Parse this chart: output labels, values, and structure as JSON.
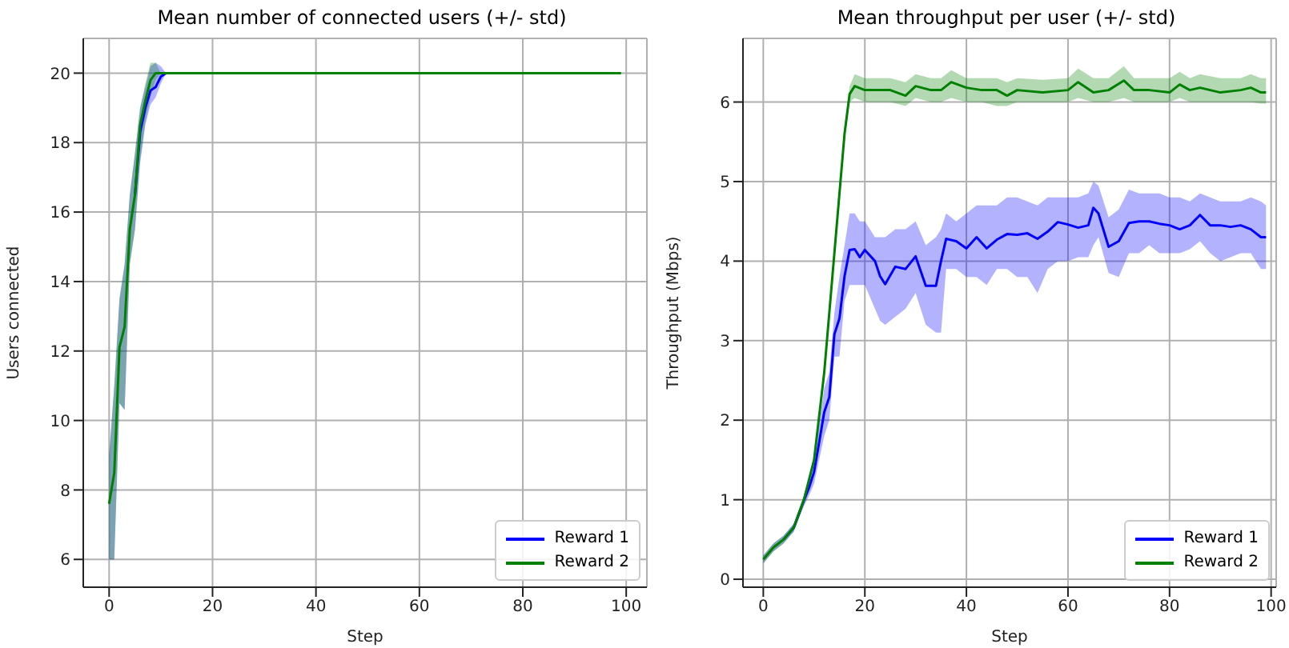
{
  "chart_data": [
    {
      "type": "line",
      "title": "Mean number of connected users (+/- std)",
      "xlabel": "Step",
      "ylabel": "Users connected",
      "xlim": [
        -5,
        104
      ],
      "ylim": [
        5.2,
        21
      ],
      "xticks": [
        0,
        20,
        40,
        60,
        80,
        100
      ],
      "yticks": [
        6,
        8,
        10,
        12,
        14,
        16,
        18,
        20
      ],
      "grid": true,
      "legend": "bottom right",
      "series": [
        {
          "name": "Reward 1",
          "color": "#0000ff",
          "x": [
            0,
            1,
            2,
            3,
            4,
            5,
            6,
            7,
            8,
            9,
            10,
            11
          ],
          "values": [
            null,
            null,
            null,
            null,
            null,
            16.5,
            18.3,
            19.0,
            19.5,
            19.6,
            19.9,
            20.0
          ],
          "lower": [
            6.0,
            6.0,
            10.5,
            10.3,
            14.5,
            15.5,
            17.4,
            18.5,
            19.1,
            19.3,
            19.7,
            20.0
          ],
          "upper": [
            9.0,
            11.0,
            13.5,
            14.5,
            16.5,
            17.7,
            19.0,
            19.6,
            20.2,
            20.3,
            20.2,
            20.0
          ]
        },
        {
          "name": "Reward 2",
          "color": "#008000",
          "x": [
            0,
            1,
            2,
            3,
            4,
            5,
            6,
            7,
            8,
            9,
            10,
            20,
            40,
            60,
            80,
            99
          ],
          "values": [
            7.6,
            8.5,
            12.1,
            12.7,
            15.5,
            16.5,
            18.5,
            19.2,
            19.8,
            20.0,
            20.0,
            20.0,
            20.0,
            20.0,
            20.0,
            20.0
          ],
          "lower": [
            6.0,
            6.0,
            10.5,
            10.3,
            14.5,
            15.5,
            17.5,
            18.6,
            19.3,
            19.8,
            20.0,
            20.0,
            20.0,
            20.0,
            20.0,
            20.0
          ],
          "upper": [
            9.0,
            11.0,
            13.5,
            14.5,
            16.5,
            17.7,
            19.0,
            19.7,
            20.3,
            20.3,
            20.0,
            20.0,
            20.0,
            20.0,
            20.0,
            20.0
          ]
        }
      ]
    },
    {
      "type": "line",
      "title": "Mean throughput per user (+/- std)",
      "xlabel": "Step",
      "ylabel": "Throughput (Mbps)",
      "xlim": [
        -4,
        101
      ],
      "ylim": [
        -0.1,
        6.8
      ],
      "xticks": [
        0,
        20,
        40,
        60,
        80,
        100
      ],
      "yticks": [
        0,
        1,
        2,
        3,
        4,
        5,
        6
      ],
      "grid": true,
      "legend": "bottom right",
      "series": [
        {
          "name": "Reward 1",
          "color": "#0000ff",
          "x": [
            0,
            2,
            4,
            6,
            8,
            9,
            10,
            11,
            12,
            13,
            14,
            15,
            16,
            17,
            18,
            19,
            20,
            22,
            23,
            24,
            26,
            28,
            30,
            32,
            34,
            35,
            36,
            38,
            40,
            42,
            44,
            46,
            48,
            50,
            52,
            54,
            56,
            58,
            60,
            62,
            64,
            65,
            66,
            68,
            70,
            72,
            74,
            76,
            78,
            80,
            82,
            84,
            86,
            88,
            90,
            92,
            94,
            96,
            98,
            99
          ],
          "values": [
            null,
            null,
            0.5,
            0.65,
            0.99,
            1.15,
            1.35,
            1.72,
            2.1,
            2.29,
            3.08,
            3.28,
            3.81,
            4.14,
            4.15,
            4.05,
            4.14,
            4.0,
            3.81,
            3.71,
            3.93,
            3.9,
            4.06,
            3.69,
            3.69,
            4.0,
            4.28,
            4.25,
            4.16,
            4.3,
            4.16,
            4.27,
            4.34,
            4.33,
            4.35,
            4.28,
            4.37,
            4.49,
            4.46,
            4.42,
            4.45,
            4.67,
            4.6,
            4.18,
            4.25,
            4.48,
            4.5,
            4.5,
            4.47,
            4.45,
            4.4,
            4.45,
            4.58,
            4.45,
            4.45,
            4.43,
            4.45,
            4.4,
            4.3,
            4.3
          ],
          "lower": [
            0.2,
            0.35,
            0.45,
            0.6,
            0.92,
            1.05,
            1.2,
            1.5,
            1.8,
            2.0,
            2.8,
            2.8,
            3.5,
            3.7,
            3.7,
            3.7,
            3.7,
            3.4,
            3.25,
            3.2,
            3.3,
            3.4,
            3.6,
            3.2,
            3.1,
            3.1,
            3.9,
            3.9,
            3.8,
            3.8,
            3.7,
            3.9,
            3.9,
            3.8,
            3.8,
            3.6,
            3.9,
            4.0,
            4.0,
            4.05,
            4.05,
            4.2,
            4.3,
            3.85,
            3.8,
            4.1,
            4.1,
            4.2,
            4.1,
            4.1,
            4.1,
            4.15,
            4.25,
            4.1,
            4.0,
            4.05,
            4.1,
            4.1,
            3.9,
            3.9
          ],
          "upper": [
            0.3,
            0.45,
            0.55,
            0.7,
            1.05,
            1.25,
            1.5,
            1.95,
            2.4,
            2.6,
            3.35,
            3.8,
            4.2,
            4.6,
            4.6,
            4.5,
            4.5,
            4.3,
            4.3,
            4.3,
            4.4,
            4.4,
            4.5,
            4.2,
            4.3,
            4.4,
            4.6,
            4.5,
            4.6,
            4.7,
            4.7,
            4.7,
            4.8,
            4.8,
            4.75,
            4.7,
            4.8,
            4.8,
            4.8,
            4.8,
            4.85,
            5.0,
            4.95,
            4.55,
            4.65,
            4.9,
            4.85,
            4.85,
            4.85,
            4.8,
            4.8,
            4.75,
            4.85,
            4.8,
            4.75,
            4.75,
            4.75,
            4.8,
            4.75,
            4.7
          ]
        },
        {
          "name": "Reward 2",
          "color": "#008000",
          "x": [
            0,
            2,
            4,
            6,
            8,
            10,
            12,
            14,
            16,
            17,
            18,
            20,
            22,
            25,
            28,
            30,
            33,
            35,
            37,
            40,
            43,
            46,
            48,
            50,
            55,
            60,
            62,
            65,
            68,
            71,
            73,
            76,
            80,
            82,
            84,
            86,
            90,
            94,
            96,
            98,
            99
          ],
          "values": [
            0.25,
            0.4,
            0.5,
            0.65,
            1.0,
            1.5,
            2.6,
            4.1,
            5.6,
            6.1,
            6.2,
            6.15,
            6.15,
            6.15,
            6.08,
            6.2,
            6.15,
            6.15,
            6.25,
            6.18,
            6.15,
            6.15,
            6.08,
            6.15,
            6.12,
            6.15,
            6.25,
            6.12,
            6.15,
            6.27,
            6.15,
            6.15,
            6.12,
            6.22,
            6.15,
            6.18,
            6.12,
            6.15,
            6.18,
            6.12,
            6.12
          ],
          "lower": [
            0.2,
            0.35,
            0.45,
            0.6,
            0.95,
            1.45,
            2.5,
            4.0,
            5.5,
            6.0,
            6.05,
            6.0,
            6.0,
            6.0,
            5.95,
            6.05,
            6.0,
            6.0,
            6.05,
            6.0,
            6.0,
            5.95,
            5.95,
            6.0,
            6.0,
            6.0,
            6.05,
            6.0,
            6.0,
            6.05,
            6.0,
            6.0,
            6.0,
            6.05,
            6.0,
            6.0,
            6.0,
            6.0,
            6.0,
            5.98,
            5.98
          ],
          "upper": [
            0.3,
            0.45,
            0.55,
            0.7,
            1.05,
            1.55,
            2.7,
            4.2,
            5.7,
            6.2,
            6.35,
            6.3,
            6.3,
            6.3,
            6.25,
            6.35,
            6.3,
            6.3,
            6.4,
            6.3,
            6.3,
            6.3,
            6.25,
            6.3,
            6.28,
            6.3,
            6.42,
            6.3,
            6.3,
            6.45,
            6.3,
            6.3,
            6.3,
            6.38,
            6.3,
            6.35,
            6.3,
            6.3,
            6.35,
            6.3,
            6.3
          ]
        }
      ]
    }
  ]
}
